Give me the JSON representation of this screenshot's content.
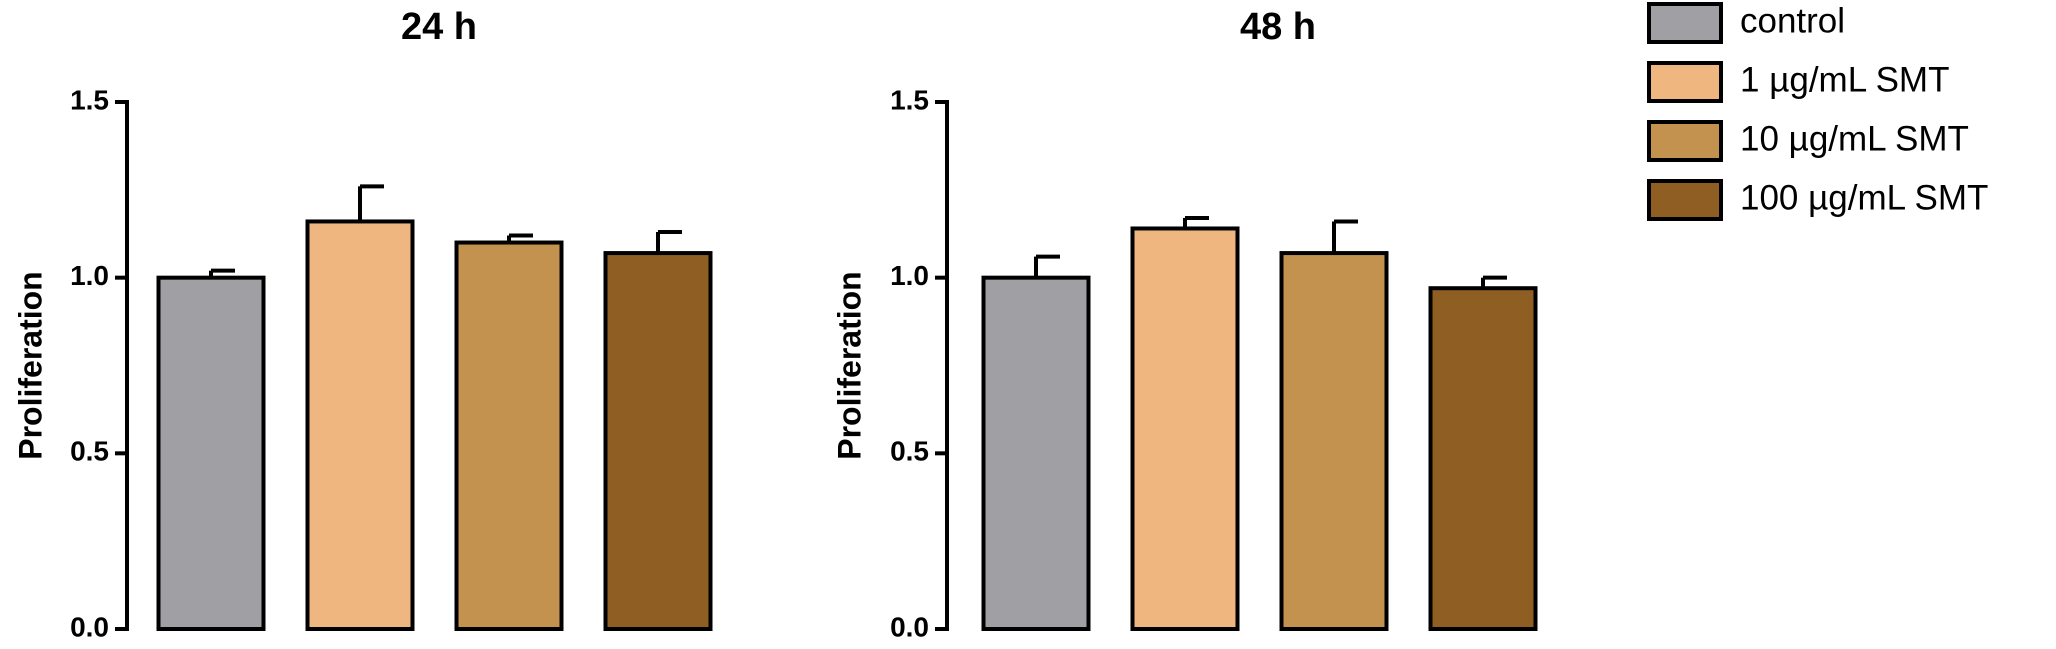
{
  "legend": [
    {
      "name": "control",
      "color": "#a09fa4"
    },
    {
      "name": "1 µg/mL SMT",
      "color": "#f0b67f"
    },
    {
      "name": "10 µg/mL SMT",
      "color": "#c4924f"
    },
    {
      "name": "100 µg/mL SMT",
      "color": "#8f5e22"
    }
  ],
  "chart_data": [
    {
      "type": "bar",
      "title": "24 h",
      "y_label": "Proliferation",
      "categories": [
        null,
        null,
        null,
        null
      ],
      "values": [
        1.0,
        1.16,
        1.1,
        1.07
      ],
      "errors": [
        0.02,
        0.1,
        0.02,
        0.06
      ],
      "ylim": [
        0,
        1.5
      ],
      "yticks": [
        {
          "value": 0,
          "label": "0.0"
        },
        {
          "value": 0.5,
          "label": "0.5"
        },
        {
          "value": 1,
          "label": "1.0"
        },
        {
          "value": 1.5,
          "label": "1.5"
        }
      ]
    },
    {
      "type": "bar",
      "title": "48 h",
      "y_label": "Proliferation",
      "categories": [
        null,
        null,
        null,
        null
      ],
      "values": [
        1.0,
        1.14,
        1.07,
        0.97
      ],
      "errors": [
        0.06,
        0.03,
        0.09,
        0.03
      ],
      "ylim": [
        0,
        1.5
      ],
      "yticks": [
        {
          "value": 0,
          "label": "0.0"
        },
        {
          "value": 0.5,
          "label": "0.5"
        },
        {
          "value": 1,
          "label": "1.0"
        },
        {
          "value": 1.5,
          "label": "1.5"
        }
      ]
    }
  ]
}
